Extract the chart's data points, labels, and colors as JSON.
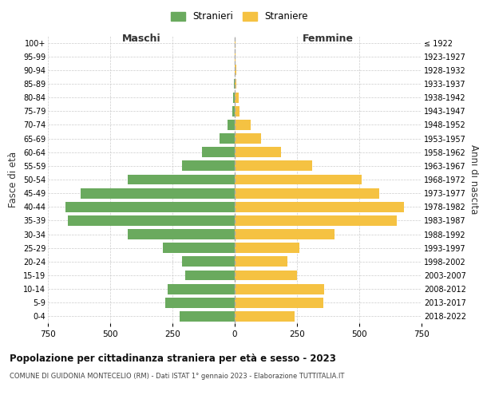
{
  "age_groups": [
    "0-4",
    "5-9",
    "10-14",
    "15-19",
    "20-24",
    "25-29",
    "30-34",
    "35-39",
    "40-44",
    "45-49",
    "50-54",
    "55-59",
    "60-64",
    "65-69",
    "70-74",
    "75-79",
    "80-84",
    "85-89",
    "90-94",
    "95-99",
    "100+"
  ],
  "birth_years": [
    "2018-2022",
    "2013-2017",
    "2008-2012",
    "2003-2007",
    "1998-2002",
    "1993-1997",
    "1988-1992",
    "1983-1987",
    "1978-1982",
    "1973-1977",
    "1968-1972",
    "1963-1967",
    "1958-1962",
    "1953-1957",
    "1948-1952",
    "1943-1947",
    "1938-1942",
    "1933-1937",
    "1928-1932",
    "1923-1927",
    "≤ 1922"
  ],
  "males": [
    220,
    280,
    270,
    200,
    210,
    290,
    430,
    670,
    680,
    620,
    430,
    210,
    130,
    60,
    30,
    10,
    5,
    2,
    0,
    0,
    0
  ],
  "females": [
    240,
    355,
    360,
    250,
    210,
    260,
    400,
    650,
    680,
    580,
    510,
    310,
    185,
    105,
    65,
    20,
    15,
    8,
    5,
    2,
    2
  ],
  "male_color": "#6aaa5e",
  "female_color": "#f5c242",
  "grid_color": "#cccccc",
  "title": "Popolazione per cittadinanza straniera per età e sesso - 2023",
  "subtitle": "COMUNE DI GUIDONIA MONTECELIO (RM) - Dati ISTAT 1° gennaio 2023 - Elaborazione TUTTITALIA.IT",
  "left_label": "Maschi",
  "right_label": "Femmine",
  "y_left_label": "Fasce di età",
  "y_right_label": "Anni di nascita",
  "legend_male": "Stranieri",
  "legend_female": "Straniere",
  "xlim": 750,
  "bg_color": "#ffffff",
  "bar_height": 0.75
}
